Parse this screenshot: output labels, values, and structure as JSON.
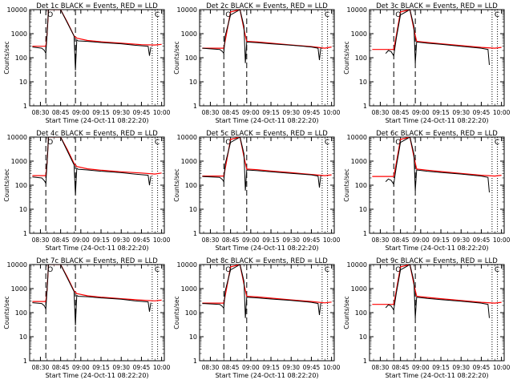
{
  "colors": {
    "events": "#000000",
    "lld": "#ff0000",
    "axes": "#000000",
    "background": "#ffffff"
  },
  "chart_data": [
    {
      "type": "line",
      "title": "Det 1c BLACK = Events, RED = LLD",
      "xlabel": "Start Time (24-Oct-11 08:22:20)",
      "ylabel": "Counts/sec",
      "yscale": "log",
      "ylim": [
        1,
        10000
      ],
      "xticks": [
        "08:30",
        "08:45",
        "09:00",
        "09:15",
        "09:30",
        "09:45",
        "10:00"
      ],
      "yticks": [
        "1",
        "10",
        "100",
        "1000",
        "10000"
      ],
      "annotations": [
        "O",
        "C"
      ],
      "vlines_dashed": [
        "08:34",
        "08:56"
      ],
      "vlines_dotted": [
        "09:53",
        "09:57"
      ],
      "series": [
        {
          "name": "Events",
          "x": [
            "08:24",
            "08:31",
            "08:33",
            "08:34",
            "08:35",
            "08:36",
            "08:40",
            "08:45",
            "08:55",
            "08:56",
            "08:57",
            "08:58",
            "09:05",
            "09:15",
            "09:30",
            "09:40",
            "09:50",
            "09:51",
            "09:52"
          ],
          "y": [
            280,
            250,
            200,
            150,
            1000,
            10000,
            10000,
            10000,
            800,
            30,
            550,
            500,
            480,
            430,
            380,
            330,
            300,
            120,
            280
          ]
        },
        {
          "name": "LLD",
          "x": [
            "08:24",
            "08:34",
            "08:35",
            "08:36",
            "08:45",
            "08:50",
            "08:55",
            "08:57",
            "09:05",
            "09:15",
            "09:30",
            "09:45",
            "09:55",
            "10:00"
          ],
          "y": [
            300,
            300,
            1000,
            10000,
            10000,
            3000,
            800,
            650,
            520,
            460,
            400,
            350,
            340,
            360
          ]
        }
      ]
    },
    {
      "type": "line",
      "title": "Det 2c BLACK = Events, RED = LLD",
      "xlabel": "Start Time (24-Oct-11 08:22:20)",
      "ylabel": "Counts/sec",
      "yscale": "log",
      "ylim": [
        1,
        10000
      ],
      "xticks": [
        "08:30",
        "08:45",
        "09:00",
        "09:15",
        "09:30",
        "09:45",
        "10:00"
      ],
      "yticks": [
        "1",
        "10",
        "100",
        "1000",
        "10000"
      ],
      "annotations": [
        "O",
        "C"
      ],
      "vlines_dashed": [
        "08:40",
        "08:57"
      ],
      "vlines_dotted": [
        "09:53",
        "09:57"
      ],
      "series": [
        {
          "name": "Events",
          "x": [
            "08:24",
            "08:37",
            "08:39",
            "08:40",
            "08:41",
            "08:45",
            "08:52",
            "08:55",
            "08:56",
            "08:57",
            "09:05",
            "09:15",
            "09:30",
            "09:45",
            "09:50",
            "09:51",
            "09:52"
          ],
          "y": [
            250,
            220,
            180,
            150,
            800,
            6000,
            10000,
            2000,
            60,
            450,
            420,
            380,
            330,
            280,
            250,
            80,
            260
          ]
        },
        {
          "name": "LLD",
          "x": [
            "08:24",
            "08:40",
            "08:42",
            "08:45",
            "08:52",
            "08:55",
            "08:57",
            "09:05",
            "09:15",
            "09:30",
            "09:45",
            "09:55",
            "10:00"
          ],
          "y": [
            250,
            250,
            1000,
            8000,
            10000,
            1500,
            480,
            450,
            400,
            340,
            290,
            250,
            280
          ]
        }
      ]
    },
    {
      "type": "line",
      "title": "Det 3c BLACK = Events, RED = LLD",
      "xlabel": "Start Time (24-Oct-11 08:22:20)",
      "ylabel": "Counts/sec",
      "yscale": "log",
      "ylim": [
        1,
        10000
      ],
      "xticks": [
        "08:30",
        "08:45",
        "09:00",
        "09:15",
        "09:30",
        "09:45",
        "10:00"
      ],
      "yticks": [
        "1",
        "10",
        "100",
        "1000",
        "10000"
      ],
      "annotations": [
        "O",
        "C"
      ],
      "vlines_dashed": [
        "08:40",
        "08:56"
      ],
      "vlines_dotted": [
        "09:53",
        "09:57"
      ],
      "series": [
        {
          "name": "Events",
          "x": [
            "08:34",
            "08:36",
            "08:38",
            "08:40",
            "08:42",
            "08:45",
            "08:52",
            "08:55",
            "08:56",
            "08:57",
            "09:05",
            "09:15",
            "09:30",
            "09:45",
            "09:50",
            "09:51"
          ],
          "y": [
            150,
            200,
            180,
            120,
            700,
            6000,
            10000,
            2000,
            60,
            450,
            400,
            360,
            300,
            250,
            220,
            50
          ]
        },
        {
          "name": "LLD",
          "x": [
            "08:24",
            "08:40",
            "08:42",
            "08:45",
            "08:52",
            "08:55",
            "08:57",
            "09:05",
            "09:15",
            "09:30",
            "09:45",
            "09:55",
            "10:00"
          ],
          "y": [
            220,
            220,
            900,
            8000,
            10000,
            1500,
            480,
            430,
            380,
            320,
            270,
            250,
            270
          ]
        }
      ]
    },
    {
      "type": "line",
      "title": "Det 4c BLACK = Events, RED = LLD",
      "xlabel": "Start Time (24-Oct-11 08:22:20)",
      "ylabel": "Counts/sec",
      "yscale": "log",
      "ylim": [
        1,
        10000
      ],
      "xticks": [
        "08:30",
        "08:45",
        "09:00",
        "09:15",
        "09:30",
        "09:45",
        "10:00"
      ],
      "yticks": [
        "1",
        "10",
        "100",
        "1000",
        "10000"
      ],
      "annotations": [
        "O",
        "C"
      ],
      "vlines_dashed": [
        "08:34",
        "08:56"
      ],
      "vlines_dotted": [
        "09:53",
        "09:57"
      ],
      "series": [
        {
          "name": "Events",
          "x": [
            "08:24",
            "08:31",
            "08:33",
            "08:34",
            "08:35",
            "08:36",
            "08:40",
            "08:45",
            "08:55",
            "08:56",
            "08:57",
            "08:58",
            "09:05",
            "09:15",
            "09:30",
            "09:40",
            "09:50",
            "09:51",
            "09:52"
          ],
          "y": [
            220,
            200,
            150,
            120,
            900,
            10000,
            10000,
            10000,
            700,
            40,
            500,
            460,
            430,
            380,
            330,
            290,
            260,
            100,
            240
          ]
        },
        {
          "name": "LLD",
          "x": [
            "08:24",
            "08:34",
            "08:35",
            "08:36",
            "08:45",
            "08:50",
            "08:55",
            "08:57",
            "09:05",
            "09:15",
            "09:30",
            "09:45",
            "09:55",
            "10:00"
          ],
          "y": [
            250,
            250,
            900,
            10000,
            10000,
            3000,
            800,
            600,
            480,
            420,
            360,
            320,
            290,
            320
          ]
        }
      ]
    },
    {
      "type": "line",
      "title": "Det 5c BLACK = Events, RED = LLD",
      "xlabel": "Start Time (24-Oct-11 08:22:20)",
      "ylabel": "Counts/sec",
      "yscale": "log",
      "ylim": [
        1,
        10000
      ],
      "xticks": [
        "08:30",
        "08:45",
        "09:00",
        "09:15",
        "09:30",
        "09:45",
        "10:00"
      ],
      "yticks": [
        "1",
        "10",
        "100",
        "1000",
        "10000"
      ],
      "annotations": [
        "O",
        "C"
      ],
      "vlines_dashed": [
        "08:40",
        "08:57"
      ],
      "vlines_dotted": [
        "09:53",
        "09:57"
      ],
      "series": [
        {
          "name": "Events",
          "x": [
            "08:24",
            "08:37",
            "08:39",
            "08:40",
            "08:41",
            "08:45",
            "08:52",
            "08:55",
            "08:56",
            "08:57",
            "09:05",
            "09:15",
            "09:30",
            "09:45",
            "09:50",
            "09:51",
            "09:52"
          ],
          "y": [
            230,
            210,
            170,
            140,
            750,
            6000,
            10000,
            2000,
            60,
            430,
            400,
            360,
            310,
            270,
            240,
            80,
            250
          ]
        },
        {
          "name": "LLD",
          "x": [
            "08:24",
            "08:40",
            "08:42",
            "08:45",
            "08:52",
            "08:55",
            "08:57",
            "09:05",
            "09:15",
            "09:30",
            "09:45",
            "09:55",
            "10:00"
          ],
          "y": [
            240,
            240,
            950,
            8000,
            10000,
            1500,
            470,
            440,
            390,
            330,
            280,
            250,
            270
          ]
        }
      ]
    },
    {
      "type": "line",
      "title": "Det 6c BLACK = Events, RED = LLD",
      "xlabel": "Start Time (24-Oct-11 08:22:20)",
      "ylabel": "Counts/sec",
      "yscale": "log",
      "ylim": [
        1,
        10000
      ],
      "xticks": [
        "08:30",
        "08:45",
        "09:00",
        "09:15",
        "09:30",
        "09:45",
        "10:00"
      ],
      "yticks": [
        "1",
        "10",
        "100",
        "1000",
        "10000"
      ],
      "annotations": [
        "O",
        "C"
      ],
      "vlines_dashed": [
        "08:40",
        "08:56"
      ],
      "vlines_dotted": [
        "09:53",
        "09:57"
      ],
      "series": [
        {
          "name": "Events",
          "x": [
            "08:34",
            "08:36",
            "08:38",
            "08:40",
            "08:42",
            "08:45",
            "08:52",
            "08:55",
            "08:56",
            "08:57",
            "09:05",
            "09:15",
            "09:30",
            "09:45",
            "09:50",
            "09:51"
          ],
          "y": [
            140,
            180,
            160,
            110,
            650,
            6000,
            10000,
            2000,
            60,
            430,
            380,
            340,
            290,
            240,
            210,
            50
          ]
        },
        {
          "name": "LLD",
          "x": [
            "08:24",
            "08:40",
            "08:42",
            "08:45",
            "08:52",
            "08:55",
            "08:57",
            "09:05",
            "09:15",
            "09:30",
            "09:45",
            "09:55",
            "10:00"
          ],
          "y": [
            230,
            230,
            900,
            8000,
            10000,
            1500,
            470,
            420,
            370,
            310,
            260,
            240,
            260
          ]
        }
      ]
    },
    {
      "type": "line",
      "title": "Det 7c BLACK = Events, RED = LLD",
      "xlabel": "Start Time (24-Oct-11 08:22:20)",
      "ylabel": "Counts/sec",
      "yscale": "log",
      "ylim": [
        1,
        10000
      ],
      "xticks": [
        "08:30",
        "08:45",
        "09:00",
        "09:15",
        "09:30",
        "09:45",
        "10:00"
      ],
      "yticks": [
        "1",
        "10",
        "100",
        "1000",
        "10000"
      ],
      "annotations": [
        "O",
        "C"
      ],
      "vlines_dashed": [
        "08:34",
        "08:56"
      ],
      "vlines_dotted": [
        "09:53",
        "09:57"
      ],
      "series": [
        {
          "name": "Events",
          "x": [
            "08:24",
            "08:31",
            "08:33",
            "08:34",
            "08:35",
            "08:36",
            "08:40",
            "08:45",
            "08:55",
            "08:56",
            "08:57",
            "08:58",
            "09:05",
            "09:15",
            "09:30",
            "09:40",
            "09:50",
            "09:51",
            "09:52"
          ],
          "y": [
            260,
            240,
            190,
            140,
            950,
            10000,
            10000,
            10000,
            750,
            30,
            520,
            480,
            460,
            410,
            360,
            310,
            280,
            110,
            260
          ]
        },
        {
          "name": "LLD",
          "x": [
            "08:24",
            "08:34",
            "08:35",
            "08:36",
            "08:45",
            "08:50",
            "08:55",
            "08:57",
            "09:05",
            "09:15",
            "09:30",
            "09:45",
            "09:55",
            "10:00"
          ],
          "y": [
            290,
            290,
            950,
            10000,
            10000,
            3000,
            800,
            620,
            500,
            440,
            380,
            330,
            310,
            330
          ]
        }
      ]
    },
    {
      "type": "line",
      "title": "Det 8c BLACK = Events, RED = LLD",
      "xlabel": "Start Time (24-Oct-11 08:22:20)",
      "ylabel": "Counts/sec",
      "yscale": "log",
      "ylim": [
        1,
        10000
      ],
      "xticks": [
        "08:30",
        "08:45",
        "09:00",
        "09:15",
        "09:30",
        "09:45",
        "10:00"
      ],
      "yticks": [
        "1",
        "10",
        "100",
        "1000",
        "10000"
      ],
      "annotations": [
        "O",
        "C"
      ],
      "vlines_dashed": [
        "08:40",
        "08:57"
      ],
      "vlines_dotted": [
        "09:53",
        "09:57"
      ],
      "series": [
        {
          "name": "Events",
          "x": [
            "08:24",
            "08:37",
            "08:39",
            "08:40",
            "08:41",
            "08:45",
            "08:52",
            "08:55",
            "08:56",
            "08:57",
            "09:05",
            "09:15",
            "09:30",
            "09:45",
            "09:50",
            "09:51",
            "09:52"
          ],
          "y": [
            240,
            220,
            180,
            150,
            780,
            6000,
            10000,
            2000,
            60,
            440,
            410,
            370,
            320,
            270,
            240,
            80,
            250
          ]
        },
        {
          "name": "LLD",
          "x": [
            "08:24",
            "08:40",
            "08:42",
            "08:45",
            "08:52",
            "08:55",
            "08:57",
            "09:05",
            "09:15",
            "09:30",
            "09:45",
            "09:55",
            "10:00"
          ],
          "y": [
            250,
            250,
            980,
            8000,
            10000,
            1500,
            480,
            450,
            400,
            340,
            290,
            255,
            275
          ]
        }
      ]
    },
    {
      "type": "line",
      "title": "Det 9c BLACK = Events, RED = LLD",
      "xlabel": "Start Time (24-Oct-11 08:22:20)",
      "ylabel": "Counts/sec",
      "yscale": "log",
      "ylim": [
        1,
        10000
      ],
      "xticks": [
        "08:30",
        "08:45",
        "09:00",
        "09:15",
        "09:30",
        "09:45",
        "10:00"
      ],
      "yticks": [
        "1",
        "10",
        "100",
        "1000",
        "10000"
      ],
      "annotations": [
        "O",
        "C"
      ],
      "vlines_dashed": [
        "08:40",
        "08:56"
      ],
      "vlines_dotted": [
        "09:53",
        "09:57"
      ],
      "series": [
        {
          "name": "Events",
          "x": [
            "08:34",
            "08:36",
            "08:38",
            "08:40",
            "08:42",
            "08:45",
            "08:52",
            "08:55",
            "08:56",
            "08:57",
            "09:05",
            "09:15",
            "09:30",
            "09:45",
            "09:50",
            "09:51"
          ],
          "y": [
            160,
            210,
            190,
            130,
            700,
            6000,
            10000,
            2000,
            60,
            440,
            390,
            350,
            300,
            250,
            220,
            60
          ]
        },
        {
          "name": "LLD",
          "x": [
            "08:24",
            "08:40",
            "08:42",
            "08:45",
            "08:52",
            "08:55",
            "08:57",
            "09:05",
            "09:15",
            "09:30",
            "09:45",
            "09:55",
            "10:00"
          ],
          "y": [
            220,
            220,
            900,
            8000,
            10000,
            1500,
            480,
            430,
            380,
            320,
            270,
            250,
            270
          ]
        }
      ]
    }
  ]
}
